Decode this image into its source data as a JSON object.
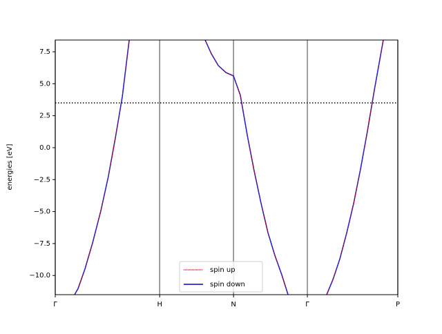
{
  "chart_data": {
    "type": "line",
    "ylabel": "energies [eV]",
    "x": [
      0.185,
      0.218,
      0.284,
      0.357,
      0.437,
      0.509,
      0.575,
      0.642,
      0.708,
      null,
      1.435,
      1.495,
      1.561,
      1.634,
      1.707,
      1.772,
      1.839,
      1.905,
      1.971,
      2.037,
      2.103,
      2.169,
      2.229,
      null,
      2.599,
      2.659,
      2.725,
      2.791,
      2.857,
      2.923,
      2.989,
      3.056,
      3.141
    ],
    "series": [
      {
        "name": "spin up",
        "color": "#d62728",
        "dash": "1,1",
        "values": [
          -11.5,
          -11.03,
          -9.51,
          -7.46,
          -4.92,
          -2.22,
          0.75,
          3.99,
          8.42,
          null,
          8.42,
          7.34,
          6.42,
          5.88,
          5.61,
          4.1,
          0.96,
          -1.84,
          -4.38,
          -6.65,
          -8.43,
          -9.95,
          -11.5,
          null,
          -11.5,
          -10.32,
          -8.7,
          -6.65,
          -4.38,
          -1.68,
          1.29,
          4.53,
          8.42
        ]
      },
      {
        "name": "spin down",
        "color": "#0000cc",
        "dash": "none",
        "values": [
          -11.5,
          -11.03,
          -9.51,
          -7.46,
          -4.92,
          -2.22,
          0.75,
          3.99,
          8.42,
          null,
          8.42,
          7.34,
          6.42,
          5.88,
          5.61,
          4.1,
          0.96,
          -1.84,
          -4.38,
          -6.65,
          -8.43,
          -9.95,
          -11.5,
          null,
          -11.5,
          -10.32,
          -8.7,
          -6.65,
          -4.38,
          -1.68,
          1.29,
          4.53,
          8.42
        ]
      }
    ],
    "xlim": [
      0,
      3.28
    ],
    "xticks": [
      {
        "value": 0,
        "label": "Γ"
      },
      {
        "value": 1,
        "label": "H"
      },
      {
        "value": 1.707,
        "label": "N"
      },
      {
        "value": 2.414,
        "label": "Γ"
      },
      {
        "value": 3.28,
        "label": "P"
      }
    ],
    "xgrid": true,
    "xgrid_color": "#808080",
    "ylim": [
      -11.5,
      8.42
    ],
    "yticks": [
      {
        "value": -10,
        "label": "−10.0"
      },
      {
        "value": -7.5,
        "label": "−7.5"
      },
      {
        "value": -5,
        "label": "−5.0"
      },
      {
        "value": -2.5,
        "label": "−2.5"
      },
      {
        "value": 0,
        "label": "0.0"
      },
      2.5,
      {
        "value": 5,
        "label": "5.0"
      },
      7.5
    ],
    "hline": 3.5,
    "legend": "lower center"
  }
}
